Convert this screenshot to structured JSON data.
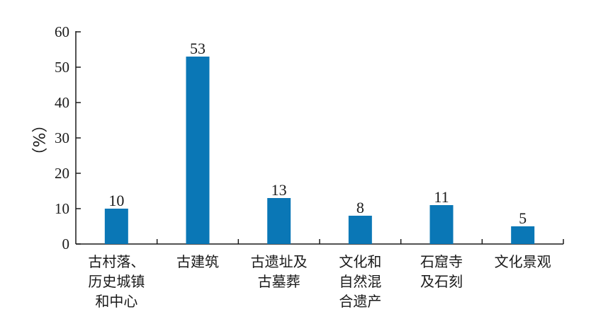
{
  "chart_data": {
    "type": "bar",
    "categories": [
      [
        "古村落、",
        "历史城镇",
        "和中心"
      ],
      [
        "古建筑"
      ],
      [
        "古遗址及",
        "古墓葬"
      ],
      [
        "文化和",
        "自然混",
        "合遗产"
      ],
      [
        "石窟寺",
        "及石刻"
      ],
      [
        "文化景观"
      ]
    ],
    "values": [
      10,
      53,
      13,
      8,
      11,
      5
    ],
    "data_labels": [
      "10",
      "53",
      "13",
      "8",
      "11",
      "5"
    ],
    "ylabel": "（%）",
    "ylim": [
      0,
      60
    ],
    "yticks": [
      0,
      10,
      20,
      30,
      40,
      50,
      60
    ],
    "bar_color": "#0a77b6",
    "grid": false,
    "legend": "none"
  }
}
